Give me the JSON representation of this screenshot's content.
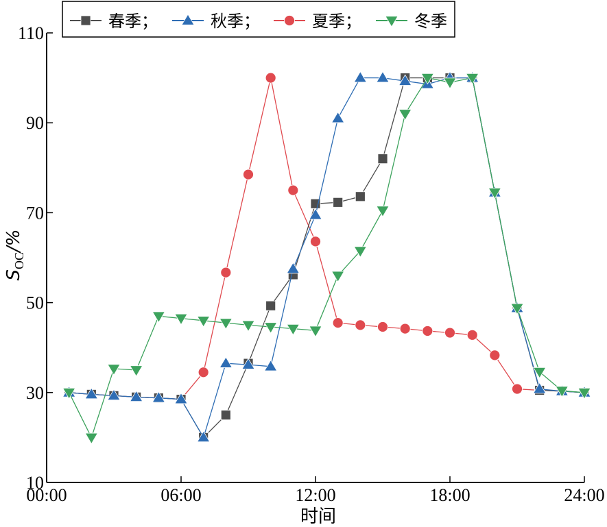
{
  "chart_data": {
    "type": "line",
    "xlabel": "时间",
    "ylabel": "S",
    "ylabel_sub": "OC",
    "ylabel_suffix": "/%",
    "xlim": [
      0,
      24
    ],
    "ylim": [
      10,
      110
    ],
    "x_ticks": [
      0,
      6,
      12,
      18,
      24
    ],
    "x_tick_labels": [
      "00:00",
      "06:00",
      "12:00",
      "18:00",
      "24:00"
    ],
    "y_ticks": [
      10,
      30,
      50,
      70,
      90,
      110
    ],
    "y_tick_labels": [
      "10",
      "30",
      "50",
      "70",
      "90",
      "110"
    ],
    "grid": false,
    "legend_position": "top",
    "x": [
      1,
      2,
      3,
      4,
      5,
      6,
      7,
      8,
      9,
      10,
      11,
      12,
      13,
      14,
      15,
      16,
      17,
      18,
      19,
      20,
      21,
      22,
      23,
      24
    ],
    "series": [
      {
        "name": "春季；",
        "marker": "square",
        "color": "#4d4d4d",
        "values": [
          30,
          29.6,
          29.3,
          29,
          28.8,
          28.5,
          20,
          25,
          36.5,
          49.3,
          56.2,
          72,
          72.3,
          73.6,
          82,
          100,
          100,
          100,
          100,
          74.5,
          48.8,
          30.5,
          30.3,
          30
        ]
      },
      {
        "name": "秋季；",
        "marker": "triangle-up",
        "color": "#2e6db4",
        "values": [
          30,
          29.6,
          29.3,
          29,
          28.8,
          28.5,
          20,
          36.5,
          36.2,
          35.8,
          57.5,
          69.5,
          91,
          100,
          100,
          99.3,
          98.6,
          100,
          100,
          74.5,
          48.8,
          30.8,
          30.3,
          30
        ]
      },
      {
        "name": "夏季；",
        "marker": "circle",
        "color": "#e04a4f",
        "values": [
          30,
          29.6,
          29.3,
          29,
          28.8,
          28.5,
          34.5,
          56.7,
          78.5,
          100,
          75,
          63.6,
          45.5,
          45,
          44.6,
          44.2,
          43.7,
          43.3,
          42.8,
          38.3,
          30.8,
          30.5,
          30.3,
          30
        ]
      },
      {
        "name": "冬季",
        "marker": "triangle-down",
        "color": "#3da35d",
        "values": [
          30,
          20,
          35.3,
          35,
          47,
          46.5,
          46,
          45.5,
          45,
          44.6,
          44.2,
          43.8,
          56,
          61.5,
          70.5,
          92,
          100,
          99,
          100,
          74.5,
          48.8,
          34.6,
          30.4,
          30
        ]
      }
    ]
  }
}
